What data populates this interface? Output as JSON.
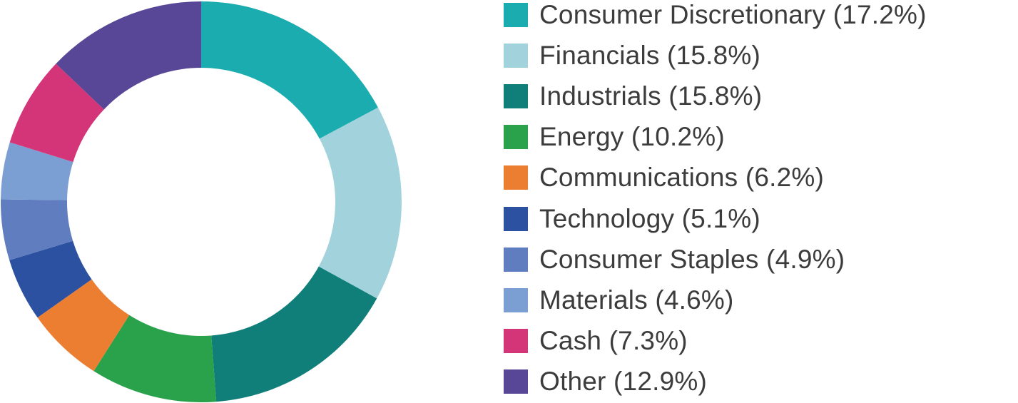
{
  "chart_data": {
    "type": "pie",
    "variant": "donut",
    "legend_position": "right",
    "slices": [
      {
        "label": "Consumer Discretionary (17.2%)",
        "category": "Consumer Discretionary",
        "value": 17.2,
        "color": "#1aacae"
      },
      {
        "label": "Financials (15.8%)",
        "category": "Financials",
        "value": 15.8,
        "color": "#a2d3dc"
      },
      {
        "label": "Industrials (15.8%)",
        "category": "Industrials",
        "value": 15.8,
        "color": "#117f79"
      },
      {
        "label": "Energy (10.2%)",
        "category": "Energy",
        "value": 10.2,
        "color": "#29a24b"
      },
      {
        "label": "Communications (6.2%)",
        "category": "Communications",
        "value": 6.2,
        "color": "#ec7e32"
      },
      {
        "label": "Technology (5.1%)",
        "category": "Technology",
        "value": 5.1,
        "color": "#2c51a0"
      },
      {
        "label": "Consumer Staples (4.9%)",
        "category": "Consumer Staples",
        "value": 4.9,
        "color": "#5f7dbf"
      },
      {
        "label": "Materials (4.6%)",
        "category": "Materials",
        "value": 4.6,
        "color": "#7b9fd3"
      },
      {
        "label": "Cash (7.3%)",
        "category": "Cash",
        "value": 7.3,
        "color": "#d43578"
      },
      {
        "label": "Other (12.9%)",
        "category": "Other",
        "value": 12.9,
        "color": "#584696"
      }
    ]
  }
}
